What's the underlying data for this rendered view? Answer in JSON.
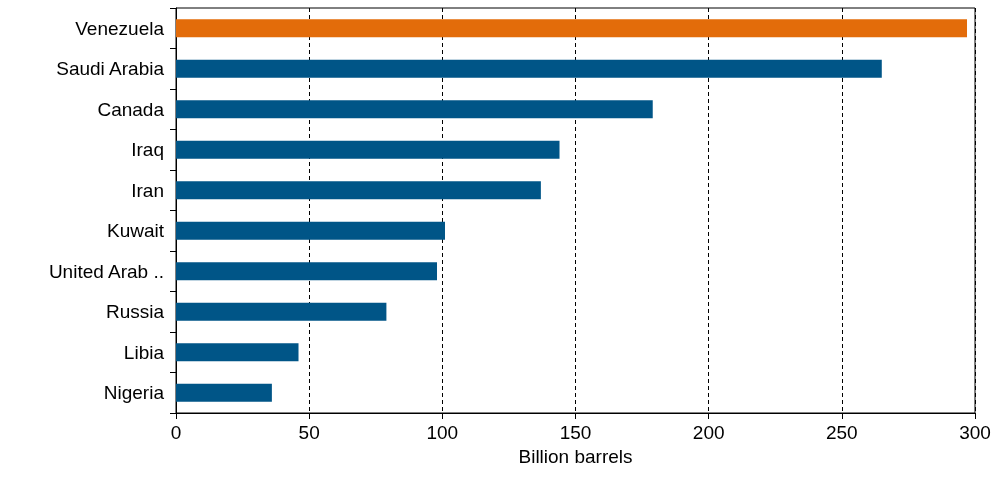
{
  "chart_data": {
    "type": "bar",
    "orientation": "horizontal",
    "xlabel": "Billion barrels",
    "categories": [
      "Venezuela",
      "Saudi Arabia",
      "Canada",
      "Iraq",
      "Iran",
      "Kuwait",
      "United Arab ..",
      "Russia",
      "Libia",
      "Nigeria"
    ],
    "values": [
      297,
      265,
      179,
      144,
      137,
      101,
      98,
      79,
      46,
      36
    ],
    "colors": [
      "#e36c0a",
      "#005587",
      "#005587",
      "#005587",
      "#005587",
      "#005587",
      "#005587",
      "#005587",
      "#005587",
      "#005587"
    ],
    "xlim": [
      0,
      300
    ],
    "xticks": [
      0,
      50,
      100,
      150,
      200,
      250,
      300
    ],
    "grid": "x"
  }
}
